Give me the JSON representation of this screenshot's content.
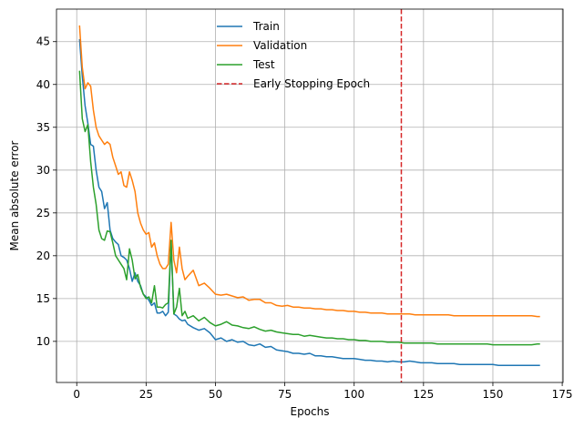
{
  "chart_data": {
    "type": "line",
    "title": "",
    "xlabel": "Epochs",
    "ylabel": "Mean absolute error",
    "xlim": [
      -7.3,
      175.3
    ],
    "ylim": [
      5.2,
      48.8
    ],
    "xticks": [
      0,
      25,
      50,
      75,
      100,
      125,
      150,
      175
    ],
    "yticks": [
      10,
      15,
      20,
      25,
      30,
      35,
      40,
      45
    ],
    "grid": true,
    "legend_position": "top-center",
    "early_stopping": {
      "name": "Early Stopping Epoch",
      "x": 117,
      "color": "#d62728",
      "style": "dashed"
    },
    "series": [
      {
        "name": "Train",
        "color": "#1f77b4",
        "x": [
          1,
          2,
          3,
          4,
          5,
          6,
          7,
          8,
          9,
          10,
          11,
          12,
          13,
          14,
          15,
          16,
          17,
          18,
          19,
          20,
          21,
          22,
          23,
          24,
          25,
          26,
          27,
          28,
          29,
          30,
          31,
          32,
          33,
          34,
          35,
          36,
          37,
          38,
          39,
          40,
          42,
          44,
          46,
          48,
          50,
          52,
          54,
          56,
          58,
          60,
          62,
          64,
          66,
          68,
          70,
          72,
          74,
          76,
          78,
          80,
          82,
          84,
          86,
          88,
          90,
          92,
          94,
          96,
          98,
          100,
          102,
          104,
          106,
          108,
          110,
          112,
          114,
          116,
          118,
          120,
          122,
          124,
          126,
          128,
          130,
          132,
          134,
          136,
          138,
          140,
          142,
          144,
          146,
          148,
          150,
          152,
          154,
          156,
          158,
          160,
          162,
          164,
          166,
          167
        ],
        "y": [
          45.3,
          41.0,
          37.5,
          35.5,
          33.0,
          32.8,
          30.0,
          28.0,
          27.5,
          25.5,
          26.2,
          23.0,
          22.0,
          21.6,
          21.3,
          20.0,
          19.8,
          19.5,
          18.5,
          17.0,
          18.0,
          17.0,
          16.5,
          15.5,
          15.2,
          14.8,
          14.2,
          14.5,
          13.3,
          13.3,
          13.5,
          13.0,
          13.4,
          21.5,
          13.2,
          13.0,
          12.6,
          12.4,
          12.5,
          12.0,
          11.6,
          11.3,
          11.5,
          11.0,
          10.2,
          10.4,
          10.0,
          10.2,
          9.9,
          10.0,
          9.6,
          9.5,
          9.7,
          9.3,
          9.4,
          9.0,
          8.9,
          8.8,
          8.6,
          8.6,
          8.5,
          8.6,
          8.3,
          8.3,
          8.2,
          8.2,
          8.1,
          8.0,
          8.0,
          8.0,
          7.9,
          7.8,
          7.8,
          7.7,
          7.7,
          7.6,
          7.7,
          7.6,
          7.6,
          7.7,
          7.6,
          7.5,
          7.5,
          7.5,
          7.4,
          7.4,
          7.4,
          7.4,
          7.3,
          7.3,
          7.3,
          7.3,
          7.3,
          7.3,
          7.3,
          7.2,
          7.2,
          7.2,
          7.2,
          7.2,
          7.2,
          7.2,
          7.2,
          7.2
        ]
      },
      {
        "name": "Validation",
        "color": "#ff7f0e",
        "x": [
          1,
          2,
          3,
          4,
          5,
          6,
          7,
          8,
          9,
          10,
          11,
          12,
          13,
          14,
          15,
          16,
          17,
          18,
          19,
          20,
          21,
          22,
          23,
          24,
          25,
          26,
          27,
          28,
          29,
          30,
          31,
          32,
          33,
          34,
          35,
          36,
          37,
          38,
          39,
          40,
          42,
          44,
          46,
          48,
          50,
          52,
          54,
          56,
          58,
          60,
          62,
          64,
          66,
          68,
          70,
          72,
          74,
          76,
          78,
          80,
          82,
          84,
          86,
          88,
          90,
          92,
          94,
          96,
          98,
          100,
          102,
          104,
          106,
          108,
          110,
          112,
          114,
          116,
          118,
          120,
          122,
          124,
          126,
          128,
          130,
          132,
          134,
          136,
          138,
          140,
          142,
          144,
          146,
          148,
          150,
          152,
          154,
          156,
          158,
          160,
          162,
          164,
          166,
          167
        ],
        "y": [
          46.9,
          42.0,
          39.5,
          40.2,
          39.8,
          37.0,
          35.0,
          34.0,
          33.5,
          33.0,
          33.3,
          33.0,
          31.5,
          30.5,
          29.5,
          29.8,
          28.2,
          28.0,
          29.8,
          28.8,
          27.5,
          25.0,
          23.8,
          23.0,
          22.5,
          22.7,
          21.0,
          21.5,
          20.0,
          19.0,
          18.5,
          18.5,
          19.0,
          23.9,
          19.5,
          18.0,
          21.0,
          18.5,
          17.2,
          17.6,
          18.3,
          16.5,
          16.8,
          16.2,
          15.5,
          15.4,
          15.5,
          15.3,
          15.1,
          15.2,
          14.8,
          14.9,
          14.9,
          14.5,
          14.5,
          14.2,
          14.1,
          14.2,
          14.0,
          14.0,
          13.9,
          13.9,
          13.8,
          13.8,
          13.7,
          13.7,
          13.6,
          13.6,
          13.5,
          13.5,
          13.4,
          13.4,
          13.3,
          13.3,
          13.3,
          13.2,
          13.2,
          13.2,
          13.2,
          13.2,
          13.1,
          13.1,
          13.1,
          13.1,
          13.1,
          13.1,
          13.1,
          13.0,
          13.0,
          13.0,
          13.0,
          13.0,
          13.0,
          13.0,
          13.0,
          13.0,
          13.0,
          13.0,
          13.0,
          13.0,
          13.0,
          13.0,
          12.9,
          12.9
        ]
      },
      {
        "name": "Test",
        "color": "#2ca02c",
        "x": [
          1,
          2,
          3,
          4,
          5,
          6,
          7,
          8,
          9,
          10,
          11,
          12,
          13,
          14,
          15,
          16,
          17,
          18,
          19,
          20,
          21,
          22,
          23,
          24,
          25,
          26,
          27,
          28,
          29,
          30,
          31,
          32,
          33,
          34,
          35,
          36,
          37,
          38,
          39,
          40,
          42,
          44,
          46,
          48,
          50,
          52,
          54,
          56,
          58,
          60,
          62,
          64,
          66,
          68,
          70,
          72,
          74,
          76,
          78,
          80,
          82,
          84,
          86,
          88,
          90,
          92,
          94,
          96,
          98,
          100,
          102,
          104,
          106,
          108,
          110,
          112,
          114,
          116,
          118,
          120,
          122,
          124,
          126,
          128,
          130,
          132,
          134,
          136,
          138,
          140,
          142,
          144,
          146,
          148,
          150,
          152,
          154,
          156,
          158,
          160,
          162,
          164,
          166,
          167
        ],
        "y": [
          41.6,
          36.0,
          34.5,
          35.3,
          31.0,
          28.0,
          26.0,
          23.0,
          22.0,
          21.8,
          22.9,
          22.8,
          21.5,
          20.0,
          19.5,
          19.0,
          18.5,
          17.2,
          20.8,
          19.5,
          17.3,
          17.8,
          16.3,
          15.5,
          15.0,
          15.2,
          14.5,
          16.5,
          14.0,
          14.0,
          13.9,
          14.3,
          14.5,
          21.8,
          13.2,
          14.0,
          16.2,
          13.0,
          13.5,
          12.7,
          13.0,
          12.4,
          12.8,
          12.2,
          11.8,
          12.0,
          12.3,
          11.9,
          11.8,
          11.6,
          11.5,
          11.7,
          11.4,
          11.2,
          11.3,
          11.1,
          11.0,
          10.9,
          10.8,
          10.8,
          10.6,
          10.7,
          10.6,
          10.5,
          10.4,
          10.4,
          10.3,
          10.3,
          10.2,
          10.2,
          10.1,
          10.1,
          10.0,
          10.0,
          10.0,
          9.9,
          9.9,
          9.9,
          9.8,
          9.8,
          9.8,
          9.8,
          9.8,
          9.8,
          9.7,
          9.7,
          9.7,
          9.7,
          9.7,
          9.7,
          9.7,
          9.7,
          9.7,
          9.7,
          9.6,
          9.6,
          9.6,
          9.6,
          9.6,
          9.6,
          9.6,
          9.6,
          9.7,
          9.7
        ]
      }
    ]
  }
}
